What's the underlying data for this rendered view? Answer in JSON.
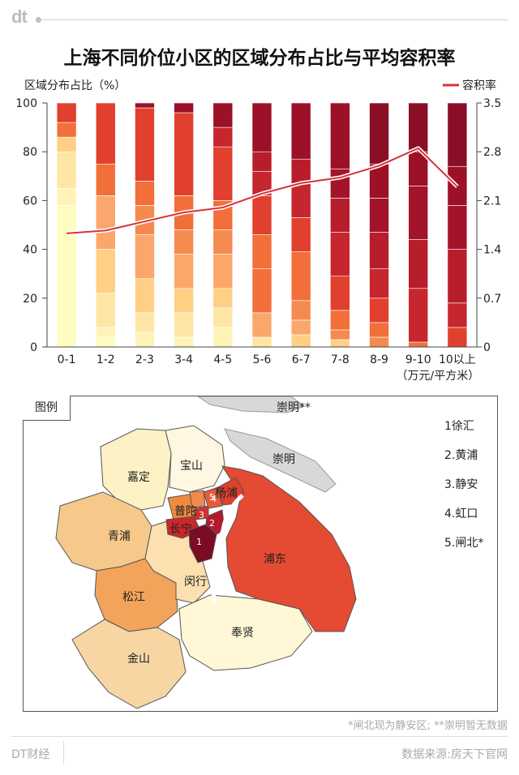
{
  "brand": "dt",
  "title": "上海不同价位小区的区域分布占比与平均容积率",
  "chart_data": {
    "type": "bar",
    "stacked": true,
    "categories": [
      "0-1",
      "1-2",
      "2-3",
      "3-4",
      "4-5",
      "5-6",
      "6-7",
      "7-8",
      "8-9",
      "9-10",
      "10以上"
    ],
    "x_unit": "（万元/平方米）",
    "ylabel_left": "区域分布占比（%）",
    "ylim_left": [
      0,
      100
    ],
    "yticks_left": [
      "0",
      "20",
      "40",
      "60",
      "80",
      "100"
    ],
    "ylim_right": [
      0,
      3.5
    ],
    "yticks_right": [
      "0",
      "0.7",
      "1.4",
      "2.1",
      "2.8",
      "3.5"
    ],
    "line_series": {
      "name": "容积率",
      "values": [
        1.63,
        1.67,
        1.8,
        1.93,
        2.0,
        2.2,
        2.35,
        2.43,
        2.6,
        2.85,
        2.3
      ],
      "color": "#d8323a"
    },
    "stacks": [
      [
        [
          58,
          "#fffcc0"
        ],
        [
          7,
          "#fff3b8"
        ],
        [
          15,
          "#ffe6a4"
        ],
        [
          6,
          "#ffcf86"
        ],
        [
          6,
          "#f26f3a"
        ],
        [
          8,
          "#e0402d"
        ]
      ],
      [
        [
          4,
          "#fffcc0"
        ],
        [
          4,
          "#fff3b8"
        ],
        [
          14,
          "#ffe6a4"
        ],
        [
          18,
          "#ffcf86"
        ],
        [
          22,
          "#fba76b"
        ],
        [
          13,
          "#f26f3a"
        ],
        [
          25,
          "#e0402d"
        ]
      ],
      [
        [
          6,
          "#fff3b8"
        ],
        [
          8,
          "#ffe6a4"
        ],
        [
          14,
          "#ffcf86"
        ],
        [
          18,
          "#fba76b"
        ],
        [
          12,
          "#f58a4f"
        ],
        [
          10,
          "#f26f3a"
        ],
        [
          30,
          "#e0402d"
        ],
        [
          2,
          "#9c1028"
        ]
      ],
      [
        [
          4,
          "#fff3b8"
        ],
        [
          10,
          "#ffe6a4"
        ],
        [
          10,
          "#ffcf86"
        ],
        [
          14,
          "#fba76b"
        ],
        [
          10,
          "#f58a4f"
        ],
        [
          14,
          "#f26f3a"
        ],
        [
          34,
          "#e0402d"
        ],
        [
          4,
          "#9c1028"
        ]
      ],
      [
        [
          8,
          "#fff3b8"
        ],
        [
          8,
          "#ffe6a4"
        ],
        [
          8,
          "#ffcf86"
        ],
        [
          14,
          "#fba76b"
        ],
        [
          10,
          "#f58a4f"
        ],
        [
          12,
          "#f26f3a"
        ],
        [
          22,
          "#e0402d"
        ],
        [
          8,
          "#c6262e"
        ],
        [
          10,
          "#9c1028"
        ]
      ],
      [
        [
          4,
          "#ffe6a4"
        ],
        [
          10,
          "#fba76b"
        ],
        [
          18,
          "#f26f3a"
        ],
        [
          14,
          "#f26f3a"
        ],
        [
          16,
          "#e0402d"
        ],
        [
          10,
          "#c6262e"
        ],
        [
          8,
          "#b81d2c"
        ],
        [
          20,
          "#9c1028"
        ]
      ],
      [
        [
          5,
          "#ffcf86"
        ],
        [
          6,
          "#fba76b"
        ],
        [
          8,
          "#f58a4f"
        ],
        [
          20,
          "#f26f3a"
        ],
        [
          14,
          "#e0402d"
        ],
        [
          14,
          "#c6262e"
        ],
        [
          10,
          "#b81d2c"
        ],
        [
          23,
          "#9c1028"
        ]
      ],
      [
        [
          3,
          "#ffcf86"
        ],
        [
          4,
          "#f58a4f"
        ],
        [
          8,
          "#f26f3a"
        ],
        [
          14,
          "#e0402d"
        ],
        [
          18,
          "#c6262e"
        ],
        [
          14,
          "#b81d2c"
        ],
        [
          12,
          "#a3142b"
        ],
        [
          27,
          "#9c1028"
        ]
      ],
      [
        [
          4,
          "#f58a4f"
        ],
        [
          6,
          "#f26f3a"
        ],
        [
          10,
          "#e0402d"
        ],
        [
          12,
          "#c6262e"
        ],
        [
          15,
          "#b81d2c"
        ],
        [
          14,
          "#a3142b"
        ],
        [
          14,
          "#9c1028"
        ],
        [
          25,
          "#8b0e27"
        ]
      ],
      [
        [
          2,
          "#f26f3a"
        ],
        [
          22,
          "#c6262e"
        ],
        [
          20,
          "#b81d2c"
        ],
        [
          22,
          "#a3142b"
        ],
        [
          14,
          "#9c1028"
        ],
        [
          20,
          "#8b0e27"
        ]
      ],
      [
        [
          8,
          "#e0402d"
        ],
        [
          10,
          "#c6262e"
        ],
        [
          22,
          "#b81d2c"
        ],
        [
          18,
          "#a3142b"
        ],
        [
          16,
          "#9c1028"
        ],
        [
          26,
          "#8b0e27"
        ]
      ]
    ]
  },
  "map": {
    "legend_title": "图例",
    "districts": {
      "chongming_star": "崇明**",
      "chongming": "崇明",
      "baoshan": "宝山",
      "jiading": "嘉定",
      "yangpu": "杨浦",
      "putuo": "普陀",
      "changning": "长宁",
      "qingpu": "青浦",
      "pudong": "浦东",
      "minhang": "闵行",
      "songjiang": "松江",
      "fengxian": "奉贤",
      "jinshan": "金山"
    },
    "numbers": [
      "1",
      "2",
      "3",
      "4",
      "5"
    ],
    "key": [
      "1徐汇",
      "2.黄浦",
      "3.静安",
      "4.虹口",
      "5.闸北*"
    ]
  },
  "footnote": "*闸北现为静安区; **崇明暂无数据",
  "footer": {
    "brand": "DT财经",
    "source": "数据来源:房天下官网"
  }
}
